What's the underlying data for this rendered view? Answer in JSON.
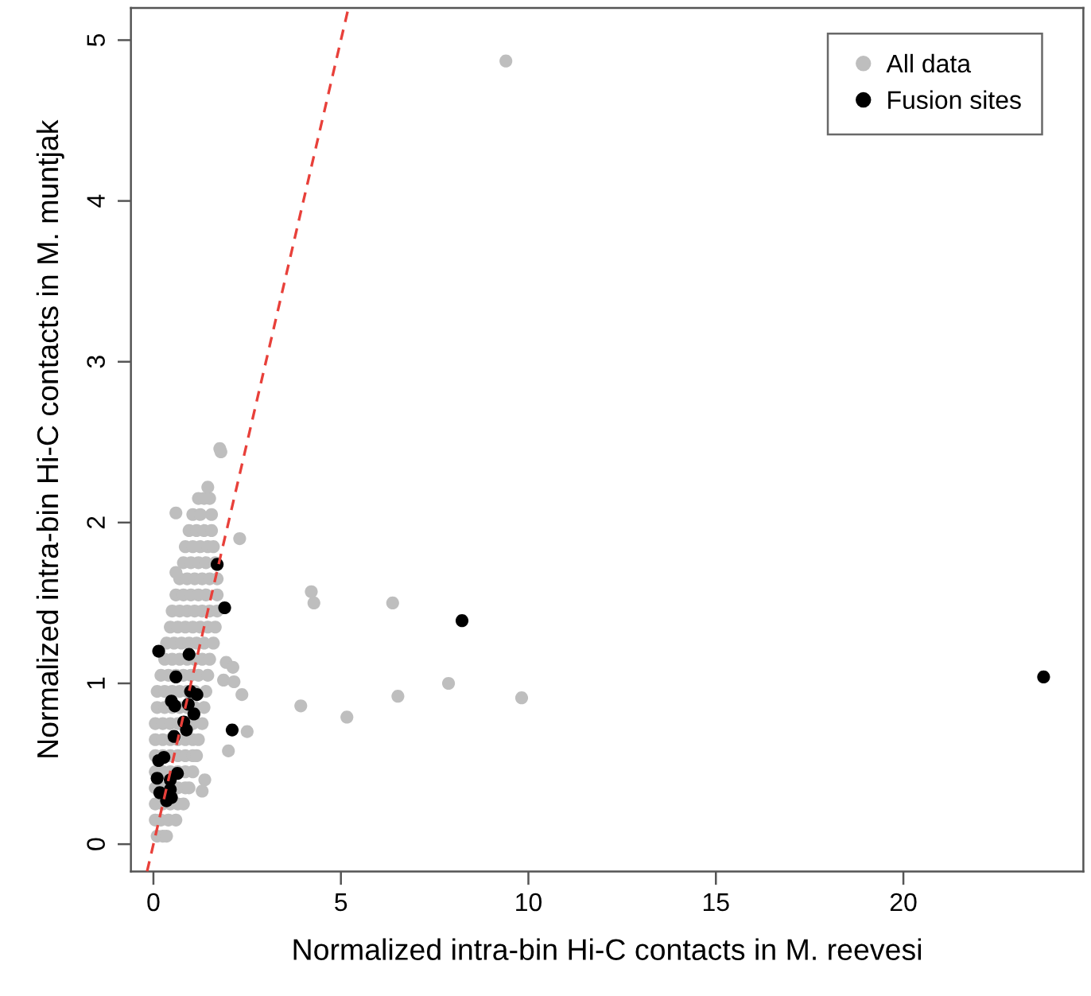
{
  "chart_data": {
    "type": "scatter",
    "xlabel": "Normalized intra-bin Hi-C contacts in M. reevesi",
    "ylabel": "Normalized intra-bin Hi-C contacts in M. muntjak",
    "xlim": [
      -0.6,
      24.8
    ],
    "ylim": [
      -0.17,
      5.2
    ],
    "xticks": [
      0,
      5,
      10,
      15,
      20
    ],
    "yticks": [
      0,
      1,
      2,
      3,
      4,
      5
    ],
    "grid": false,
    "legend": "top right",
    "marker": "circle",
    "series": [
      {
        "name": "All data",
        "color": "#bebebe",
        "x": [
          0.1,
          0.25,
          0.35,
          0.05,
          0.2,
          0.4,
          0.6,
          0.05,
          0.25,
          0.45,
          0.65,
          0.8,
          0.05,
          0.25,
          0.65,
          0.85,
          0.95,
          0.05,
          0.25,
          0.45,
          0.65,
          0.85,
          1.05,
          0.05,
          0.25,
          0.45,
          0.65,
          0.85,
          1.05,
          1.15,
          0.05,
          0.25,
          0.45,
          0.65,
          0.85,
          1.05,
          1.2,
          0.05,
          0.25,
          0.45,
          0.65,
          1.05,
          1.3,
          0.1,
          0.3,
          0.5,
          0.7,
          0.9,
          1.1,
          1.35,
          0.1,
          0.3,
          0.5,
          0.7,
          0.9,
          1.1,
          1.4,
          0.2,
          0.4,
          0.6,
          0.8,
          1.0,
          1.2,
          1.45,
          0.3,
          0.5,
          0.7,
          0.9,
          1.1,
          1.3,
          1.5,
          0.35,
          0.55,
          0.75,
          0.95,
          1.15,
          1.35,
          1.6,
          0.45,
          0.65,
          0.85,
          1.05,
          1.25,
          1.45,
          1.65,
          0.5,
          0.7,
          0.9,
          1.1,
          1.3,
          1.5,
          1.7,
          0.6,
          0.8,
          1.0,
          1.2,
          1.4,
          1.7,
          0.7,
          0.9,
          1.1,
          1.3,
          1.5,
          1.7,
          0.8,
          1.0,
          1.2,
          1.4,
          1.65,
          0.85,
          1.05,
          1.25,
          1.45,
          1.6,
          0.95,
          1.15,
          1.35,
          1.55,
          1.05,
          1.25,
          1.55,
          1.2,
          1.35,
          1.5,
          1.45,
          1.8,
          1.77,
          0.6,
          2.3,
          0.6,
          1.94,
          2.12,
          1.87,
          2.15,
          2.36,
          2.5,
          2.0,
          1.37,
          1.3,
          4.21,
          4.28,
          6.38,
          3.93,
          5.16,
          6.52,
          7.87,
          9.82,
          9.4
        ],
        "values": [
          0.05,
          0.05,
          0.05,
          0.15,
          0.15,
          0.15,
          0.15,
          0.25,
          0.25,
          0.25,
          0.25,
          0.25,
          0.35,
          0.35,
          0.35,
          0.35,
          0.35,
          0.45,
          0.45,
          0.45,
          0.45,
          0.45,
          0.45,
          0.55,
          0.55,
          0.55,
          0.55,
          0.55,
          0.55,
          0.55,
          0.65,
          0.65,
          0.65,
          0.65,
          0.65,
          0.65,
          0.65,
          0.75,
          0.75,
          0.75,
          0.75,
          0.75,
          0.75,
          0.85,
          0.85,
          0.85,
          0.85,
          0.85,
          0.85,
          0.85,
          0.95,
          0.95,
          0.95,
          0.95,
          0.95,
          0.95,
          0.95,
          1.05,
          1.05,
          1.05,
          1.05,
          1.05,
          1.05,
          1.05,
          1.15,
          1.15,
          1.15,
          1.15,
          1.15,
          1.15,
          1.15,
          1.25,
          1.25,
          1.25,
          1.25,
          1.25,
          1.25,
          1.25,
          1.35,
          1.35,
          1.35,
          1.35,
          1.35,
          1.35,
          1.35,
          1.45,
          1.45,
          1.45,
          1.45,
          1.45,
          1.45,
          1.45,
          1.55,
          1.55,
          1.55,
          1.55,
          1.55,
          1.55,
          1.65,
          1.65,
          1.65,
          1.65,
          1.65,
          1.65,
          1.75,
          1.75,
          1.75,
          1.75,
          1.75,
          1.85,
          1.85,
          1.85,
          1.85,
          1.85,
          1.95,
          1.95,
          1.95,
          1.95,
          2.05,
          2.05,
          2.05,
          2.15,
          2.15,
          2.15,
          2.22,
          2.44,
          2.46,
          2.06,
          1.9,
          1.69,
          1.13,
          1.1,
          1.02,
          1.01,
          0.93,
          0.7,
          0.58,
          0.4,
          0.33,
          1.57,
          1.5,
          1.5,
          0.86,
          0.79,
          0.92,
          1.0,
          0.91,
          4.87
        ]
      },
      {
        "name": "Fusion sites",
        "color": "#000000",
        "x": [
          1.7,
          1.9,
          0.14,
          0.95,
          0.6,
          0.99,
          1.16,
          0.48,
          0.57,
          0.93,
          1.08,
          0.81,
          0.88,
          0.55,
          2.1,
          0.28,
          0.14,
          0.1,
          0.64,
          0.45,
          0.17,
          0.45,
          0.48,
          0.35,
          8.23,
          23.74
        ],
        "values": [
          1.74,
          1.47,
          1.2,
          1.18,
          1.04,
          0.95,
          0.93,
          0.89,
          0.86,
          0.87,
          0.81,
          0.76,
          0.71,
          0.67,
          0.71,
          0.54,
          0.52,
          0.41,
          0.44,
          0.4,
          0.32,
          0.34,
          0.29,
          0.27,
          1.39,
          1.04
        ]
      },
      {
        "color": "#e8403a",
        "type": "line",
        "line_style": "dashed",
        "marker": "none",
        "x": [
          -0.17,
          5.2
        ],
        "values": [
          -0.17,
          5.2
        ]
      }
    ]
  }
}
